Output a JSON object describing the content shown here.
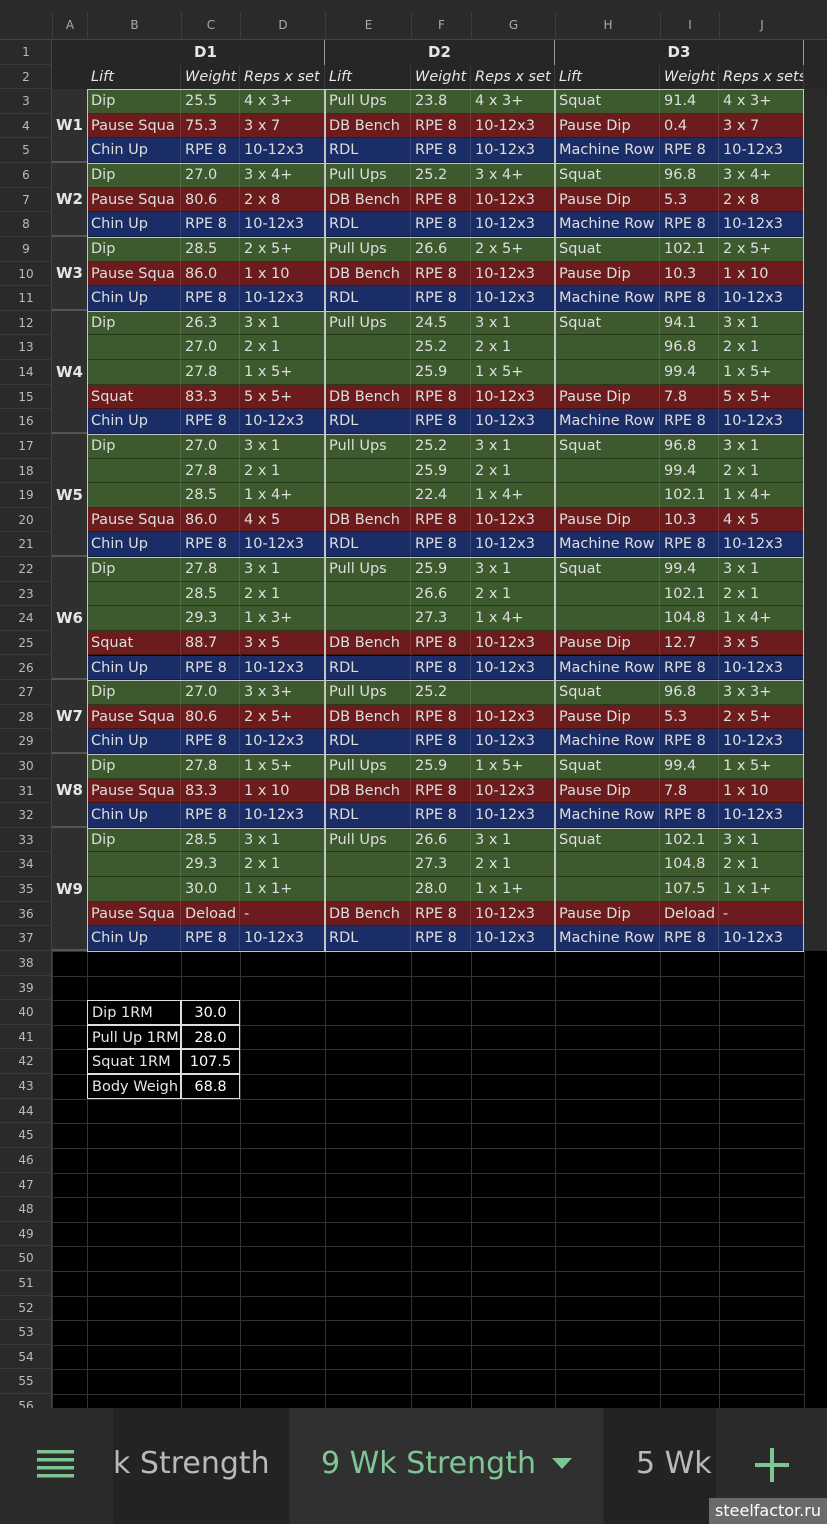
{
  "column_headers": [
    "A",
    "B",
    "C",
    "D",
    "E",
    "F",
    "G",
    "H",
    "I",
    "J"
  ],
  "row_numbers": [
    1,
    2,
    3,
    4,
    5,
    6,
    7,
    8,
    9,
    10,
    11,
    12,
    13,
    14,
    15,
    16,
    17,
    18,
    19,
    20,
    21,
    22,
    23,
    24,
    25,
    26,
    27,
    28,
    29,
    30,
    31,
    32,
    33,
    34,
    35,
    36,
    37,
    38,
    39,
    40,
    41,
    42,
    43,
    44,
    45,
    46,
    47,
    48,
    49,
    50,
    51,
    52,
    53,
    54,
    55,
    56
  ],
  "days": [
    "D1",
    "D2",
    "D3"
  ],
  "header": [
    "Lift",
    "Weight",
    "Reps x set",
    "Lift",
    "Weight",
    "Reps x set",
    "Lift",
    "Weight",
    "Reps x sets"
  ],
  "weeks": [
    {
      "label": "W1",
      "rows": [
        {
          "color": "#3d592e",
          "cells": [
            "Dip",
            "25.5",
            "4 x 3+",
            "Pull Ups",
            "23.8",
            "4 x 3+",
            "Squat",
            "91.4",
            "4 x 3+"
          ]
        },
        {
          "color": "#6c1c1c",
          "cells": [
            "Pause Squa",
            "75.3",
            "3 x 7",
            "DB Bench",
            "RPE 8",
            "10-12x3",
            "Pause Dip",
            "0.4",
            "3 x 7"
          ]
        },
        {
          "color": "#1b2d66",
          "cells": [
            "Chin Up",
            "RPE 8",
            "10-12x3",
            "RDL",
            "RPE 8",
            "10-12x3",
            "Machine Row",
            "RPE 8",
            "10-12x3"
          ]
        }
      ]
    },
    {
      "label": "W2",
      "rows": [
        {
          "color": "#3d592e",
          "cells": [
            "Dip",
            "27.0",
            "3 x 4+",
            "Pull Ups",
            "25.2",
            "3 x 4+",
            "Squat",
            "96.8",
            "3 x 4+"
          ]
        },
        {
          "color": "#6c1c1c",
          "cells": [
            "Pause Squa",
            "80.6",
            "2 x 8",
            "DB Bench",
            "RPE 8",
            "10-12x3",
            "Pause Dip",
            "5.3",
            "2 x 8"
          ]
        },
        {
          "color": "#1b2d66",
          "cells": [
            "Chin Up",
            "RPE 8",
            "10-12x3",
            "RDL",
            "RPE 8",
            "10-12x3",
            "Machine Row",
            "RPE 8",
            "10-12x3"
          ]
        }
      ]
    },
    {
      "label": "W3",
      "rows": [
        {
          "color": "#3d592e",
          "cells": [
            "Dip",
            "28.5",
            "2 x 5+",
            "Pull Ups",
            "26.6",
            "2 x 5+",
            "Squat",
            "102.1",
            "2 x 5+"
          ]
        },
        {
          "color": "#6c1c1c",
          "cells": [
            "Pause Squa",
            "86.0",
            "1 x 10",
            "DB Bench",
            "RPE 8",
            "10-12x3",
            "Pause Dip",
            "10.3",
            "1 x 10"
          ]
        },
        {
          "color": "#1b2d66",
          "cells": [
            "Chin Up",
            "RPE 8",
            "10-12x3",
            "RDL",
            "RPE 8",
            "10-12x3",
            "Machine Row",
            "RPE 8",
            "10-12x3"
          ]
        }
      ]
    },
    {
      "label": "W4",
      "rows": [
        {
          "color": "#3d592e",
          "cells": [
            "Dip",
            "26.3",
            "3 x 1",
            "Pull Ups",
            "24.5",
            "3 x 1",
            "Squat",
            "94.1",
            "3 x 1"
          ]
        },
        {
          "color": "#3d592e",
          "cells": [
            null,
            "27.0",
            "2 x 1",
            null,
            "25.2",
            "2 x 1",
            null,
            "96.8",
            "2 x 1"
          ]
        },
        {
          "color": "#3d592e",
          "cells": [
            null,
            "27.8",
            "1 x 5+",
            null,
            "25.9",
            "1 x 5+",
            null,
            "99.4",
            "1 x 5+"
          ]
        },
        {
          "color": "#6c1c1c",
          "cells": [
            "Squat",
            "83.3",
            "5 x 5+",
            "DB Bench",
            "RPE 8",
            "10-12x3",
            "Pause Dip",
            "7.8",
            "5 x 5+"
          ]
        },
        {
          "color": "#1b2d66",
          "cells": [
            "Chin Up",
            "RPE 8",
            "10-12x3",
            "RDL",
            "RPE 8",
            "10-12x3",
            "Machine Row",
            "RPE 8",
            "10-12x3"
          ]
        }
      ]
    },
    {
      "label": "W5",
      "rows": [
        {
          "color": "#3d592e",
          "cells": [
            "Dip",
            "27.0",
            "3 x 1",
            "Pull Ups",
            "25.2",
            "3 x 1",
            "Squat",
            "96.8",
            "3 x 1"
          ]
        },
        {
          "color": "#3d592e",
          "cells": [
            null,
            "27.8",
            "2 x 1",
            null,
            "25.9",
            "2 x 1",
            null,
            "99.4",
            "2 x 1"
          ]
        },
        {
          "color": "#3d592e",
          "cells": [
            null,
            "28.5",
            "1 x 4+",
            null,
            "22.4",
            "1 x 4+",
            null,
            "102.1",
            "1 x 4+"
          ]
        },
        {
          "color": "#6c1c1c",
          "cells": [
            "Pause Squa",
            "86.0",
            "4 x 5",
            "DB Bench",
            "RPE 8",
            "10-12x3",
            "Pause Dip",
            "10.3",
            "4 x 5"
          ]
        },
        {
          "color": "#1b2d66",
          "cells": [
            "Chin Up",
            "RPE 8",
            "10-12x3",
            "RDL",
            "RPE 8",
            "10-12x3",
            "Machine Row",
            "RPE 8",
            "10-12x3"
          ]
        }
      ]
    },
    {
      "label": "W6",
      "rows": [
        {
          "color": "#3d592e",
          "cells": [
            "Dip",
            "27.8",
            "3 x 1",
            "Pull Ups",
            "25.9",
            "3 x 1",
            "Squat",
            "99.4",
            "3 x 1"
          ]
        },
        {
          "color": "#3d592e",
          "cells": [
            null,
            "28.5",
            "2 x 1",
            null,
            "26.6",
            "2 x 1",
            null,
            "102.1",
            "2 x 1"
          ]
        },
        {
          "color": "#3d592e",
          "cells": [
            null,
            "29.3",
            "1 x 3+",
            null,
            "27.3",
            "1 x 4+",
            null,
            "104.8",
            "1 x 4+"
          ]
        },
        {
          "color": "#6c1c1c",
          "cells": [
            "Squat",
            "88.7",
            "3 x 5",
            "DB Bench",
            "RPE 8",
            "10-12x3",
            "Pause Dip",
            "12.7",
            "3 x 5"
          ]
        },
        {
          "color": "#1b2d66",
          "cells": [
            "Chin Up",
            "RPE 8",
            "10-12x3",
            "RDL",
            "RPE 8",
            "10-12x3",
            "Machine Row",
            "RPE 8",
            "10-12x3"
          ]
        }
      ]
    },
    {
      "label": "W7",
      "rows": [
        {
          "color": "#3d592e",
          "cells": [
            "Dip",
            "27.0",
            "3 x 3+",
            "Pull Ups",
            "25.2",
            null,
            "Squat",
            "96.8",
            "3 x 3+"
          ]
        },
        {
          "color": "#6c1c1c",
          "cells": [
            "Pause Squa",
            "80.6",
            "2 x 5+",
            "DB Bench",
            "RPE 8",
            "10-12x3",
            "Pause Dip",
            "5.3",
            "2 x 5+"
          ]
        },
        {
          "color": "#1b2d66",
          "cells": [
            "Chin Up",
            "RPE 8",
            "10-12x3",
            "RDL",
            "RPE 8",
            "10-12x3",
            "Machine Row",
            "RPE 8",
            "10-12x3"
          ]
        }
      ]
    },
    {
      "label": "W8",
      "rows": [
        {
          "color": "#3d592e",
          "cells": [
            "Dip",
            "27.8",
            "1 x 5+",
            "Pull Ups",
            "25.9",
            "1 x 5+",
            "Squat",
            "99.4",
            "1 x 5+"
          ]
        },
        {
          "color": "#6c1c1c",
          "cells": [
            "Pause Squa",
            "83.3",
            "1 x 10",
            "DB Bench",
            "RPE 8",
            "10-12x3",
            "Pause Dip",
            "7.8",
            "1 x 10"
          ]
        },
        {
          "color": "#1b2d66",
          "cells": [
            "Chin Up",
            "RPE 8",
            "10-12x3",
            "RDL",
            "RPE 8",
            "10-12x3",
            "Machine Row",
            "RPE 8",
            "10-12x3"
          ]
        }
      ]
    },
    {
      "label": "W9",
      "rows": [
        {
          "color": "#3d592e",
          "cells": [
            "Dip",
            "28.5",
            "3 x 1",
            "Pull Ups",
            "26.6",
            "3 x 1",
            "Squat",
            "102.1",
            "3 x 1"
          ]
        },
        {
          "color": "#3d592e",
          "cells": [
            null,
            "29.3",
            "2 x 1",
            null,
            "27.3",
            "2 x 1",
            null,
            "104.8",
            "2 x 1"
          ]
        },
        {
          "color": "#3d592e",
          "cells": [
            null,
            "30.0",
            "1 x 1+",
            null,
            "28.0",
            "1 x 1+",
            null,
            "107.5",
            "1 x 1+"
          ]
        },
        {
          "color": "#6c1c1c",
          "cells": [
            "Pause Squa",
            "Deload",
            "-",
            "DB Bench",
            "RPE 8",
            "10-12x3",
            "Pause Dip",
            "Deload",
            "-"
          ]
        },
        {
          "color": "#1b2d66",
          "cells": [
            "Chin Up",
            "RPE 8",
            "10-12x3",
            "RDL",
            "RPE 8",
            "10-12x3",
            "Machine Row",
            "RPE 8",
            "10-12x3"
          ]
        }
      ]
    }
  ],
  "one_rm": [
    [
      "Dip 1RM",
      "30.0"
    ],
    [
      "Pull Up 1RM",
      "28.0"
    ],
    [
      "Squat 1RM",
      "107.5"
    ],
    [
      "Body Weigh",
      "68.8"
    ]
  ],
  "tabs": {
    "previous": "k Strength",
    "active": "9 Wk Strength",
    "next": "5 Wk"
  },
  "watermark": "steelfactor.ru"
}
